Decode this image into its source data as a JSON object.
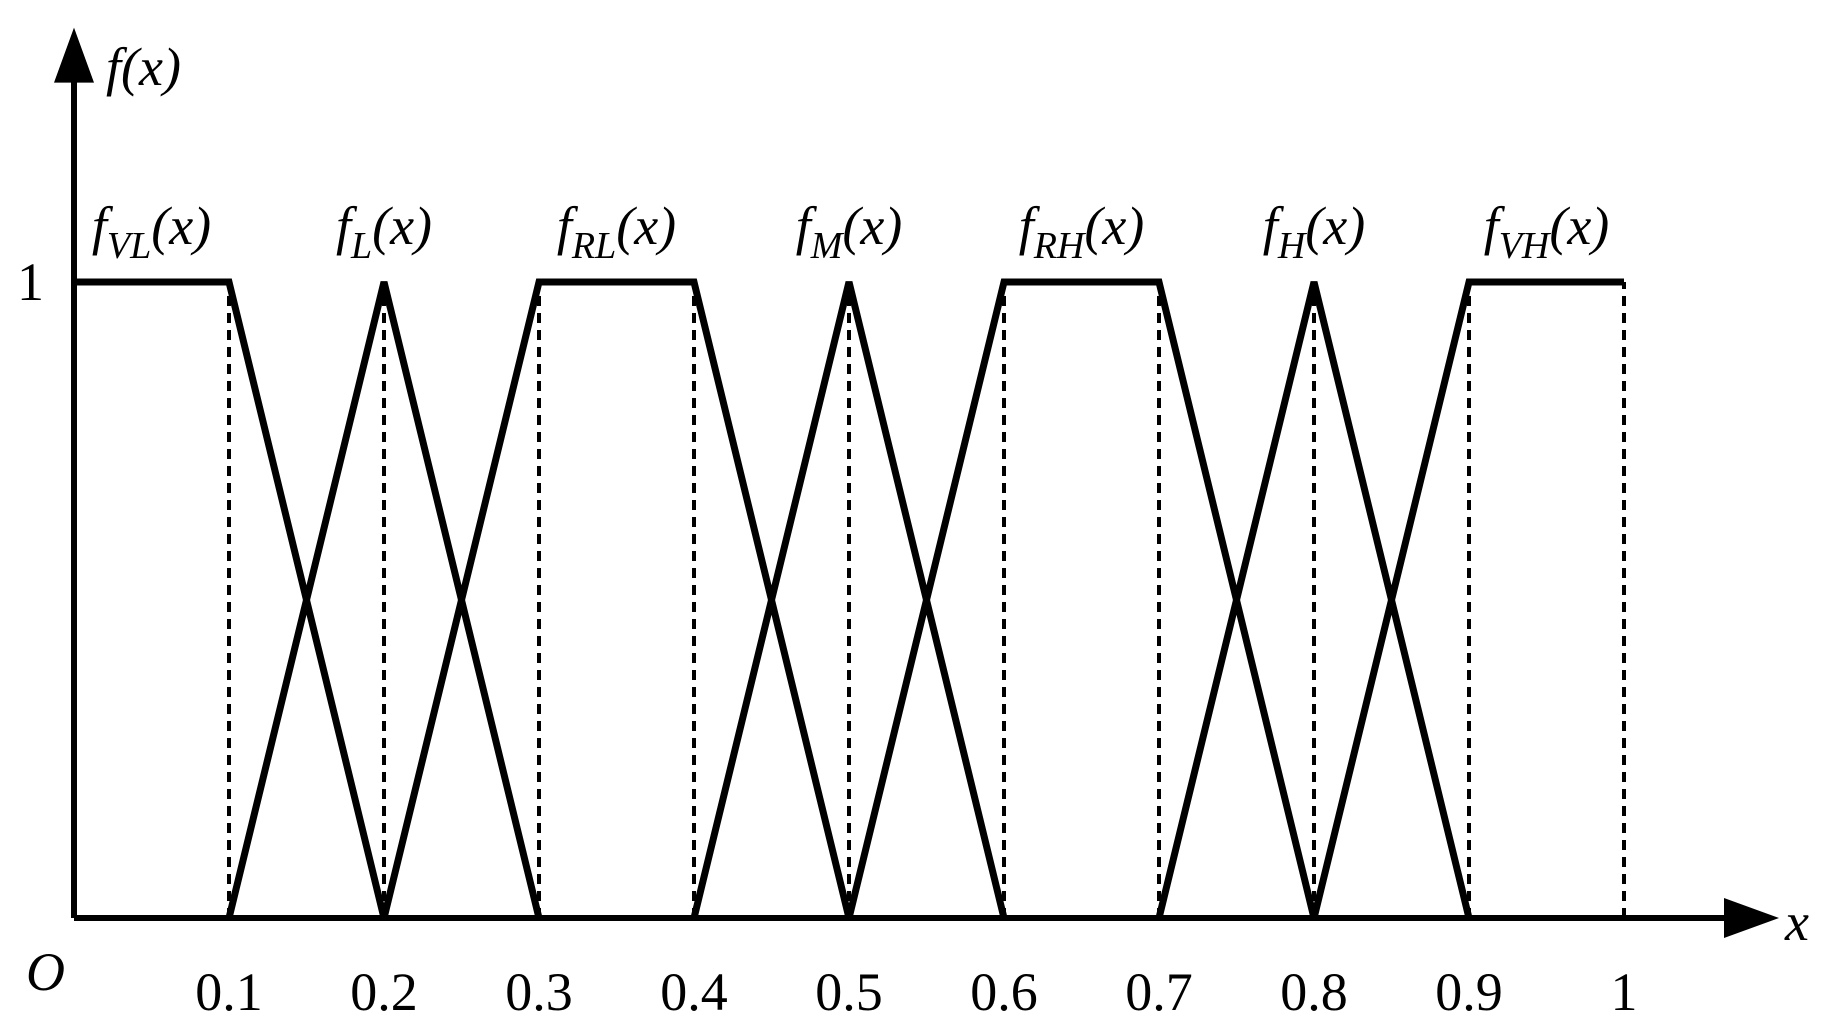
{
  "chart_data": {
    "type": "line",
    "y_label": "f(x)",
    "x_label": "x",
    "origin_label": "O",
    "xlim": [
      0,
      1.1
    ],
    "ylim": [
      0,
      1.4
    ],
    "xticks": [
      0.1,
      0.2,
      0.3,
      0.4,
      0.5,
      0.6,
      0.7,
      0.8,
      0.9,
      1
    ],
    "yticks": [
      1
    ],
    "color": "#000000",
    "series": [
      {
        "name": [
          "f",
          "VL",
          "(x)"
        ],
        "x": [
          0,
          0.1,
          0.2
        ],
        "values": [
          1,
          1,
          0
        ]
      },
      {
        "name": [
          "f",
          "L",
          "(x)"
        ],
        "x": [
          0.1,
          0.2,
          0.3
        ],
        "values": [
          0,
          1,
          0
        ]
      },
      {
        "name": [
          "f",
          "RL",
          "(x)"
        ],
        "x": [
          0.2,
          0.3,
          0.4,
          0.5
        ],
        "values": [
          0,
          1,
          1,
          0
        ]
      },
      {
        "name": [
          "f",
          "M",
          "(x)"
        ],
        "x": [
          0.4,
          0.5,
          0.6
        ],
        "values": [
          0,
          1,
          0
        ]
      },
      {
        "name": [
          "f",
          "RH",
          "(x)"
        ],
        "x": [
          0.5,
          0.6,
          0.7,
          0.8
        ],
        "values": [
          0,
          1,
          1,
          0
        ]
      },
      {
        "name": [
          "f",
          "H",
          "(x)"
        ],
        "x": [
          0.7,
          0.8,
          0.9
        ],
        "values": [
          0,
          1,
          0
        ]
      },
      {
        "name": [
          "f",
          "VH",
          "(x)"
        ],
        "x": [
          0.8,
          0.9,
          1
        ],
        "values": [
          0,
          1,
          1
        ]
      }
    ]
  }
}
